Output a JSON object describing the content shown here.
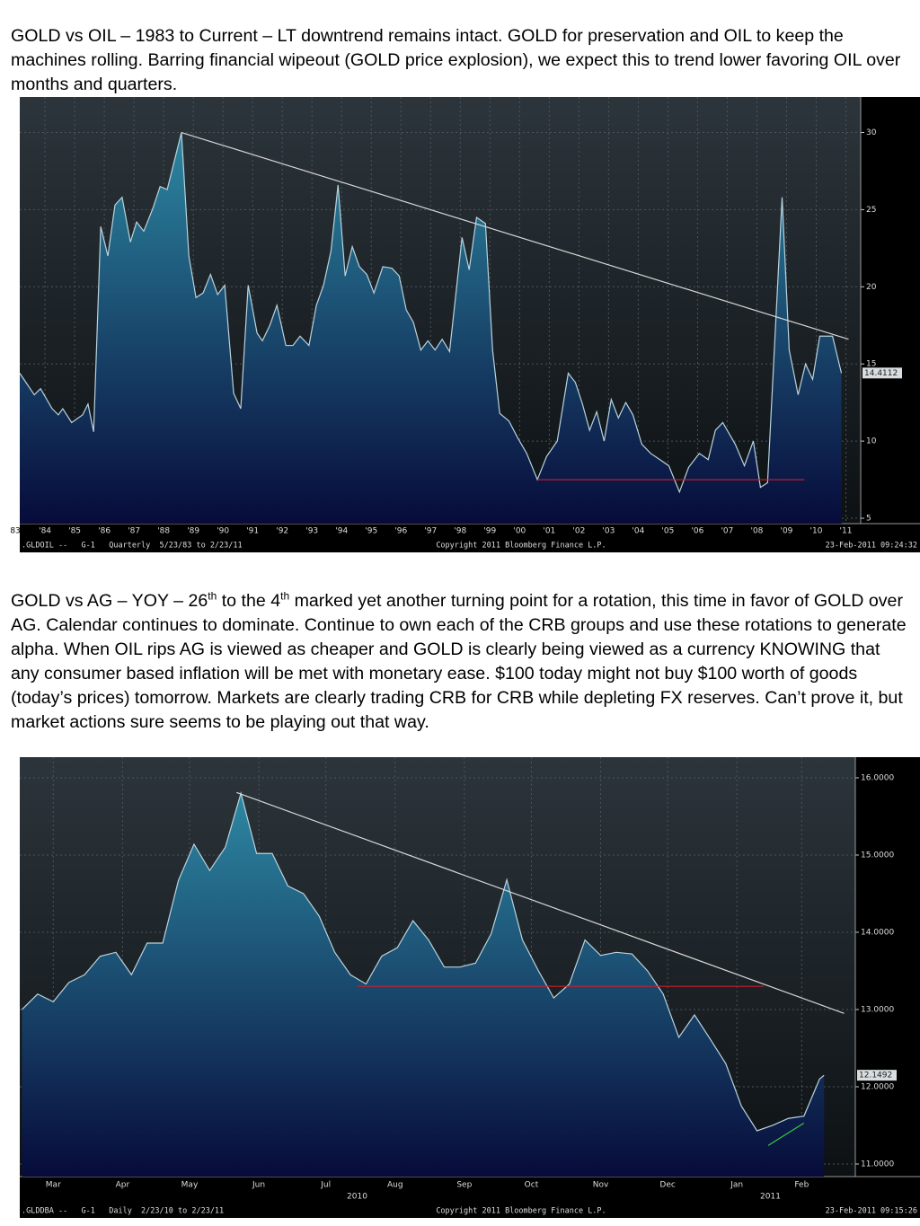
{
  "paragraphs": [
    {
      "parts": [
        "GOLD vs OIL – 1983 to Current – LT downtrend remains intact. GOLD for preservation and OIL to keep the machines rolling. Barring financial wipeout (GOLD price explosion), we expect this to trend lower favoring OIL over months and quarters."
      ]
    },
    {
      "parts": [
        "GOLD vs AG – YOY – 26",
        "th",
        " to the 4",
        "th",
        " marked yet another turning point for a rotation, this time in favor of GOLD over AG. Calendar continues to dominate. Continue to own each of the CRB groups and use these rotations to generate alpha. When OIL rips AG is viewed as cheaper and GOLD is clearly being viewed as a currency KNOWING that any consumer based inflation will be met with monetary ease. $100 today might not buy $100 worth of goods (today’s prices) tomorrow. Markets are clearly trading CRB for CRB while depleting FX reserves. Can’t prove it, but market actions sure seems to be playing out that way."
      ]
    }
  ],
  "chart_data": [
    {
      "type": "area",
      "color": "#2d88a2",
      "line_color": "#b9d3dd",
      "grid": true,
      "x": [
        1983.15,
        1983.64,
        1983.85,
        1984.24,
        1984.45,
        1984.6,
        1984.9,
        1985.27,
        1985.45,
        1985.64,
        1985.88,
        1986.12,
        1986.36,
        1986.6,
        1986.88,
        1987.09,
        1987.33,
        1987.64,
        1987.88,
        1988.12,
        1988.6,
        1988.85,
        1989.09,
        1989.33,
        1989.58,
        1989.82,
        1990.06,
        1990.36,
        1990.6,
        1990.85,
        1991.15,
        1991.33,
        1991.58,
        1991.82,
        1992.12,
        1992.36,
        1992.6,
        1992.9,
        1993.15,
        1993.39,
        1993.64,
        1993.88,
        1994.12,
        1994.36,
        1994.6,
        1994.85,
        1995.09,
        1995.39,
        1995.7,
        1995.94,
        1996.18,
        1996.42,
        1996.67,
        1996.91,
        1997.15,
        1997.39,
        1997.64,
        1998.06,
        1998.3,
        1998.55,
        1998.85,
        1999.09,
        1999.33,
        1999.64,
        1999.94,
        2000.24,
        2000.6,
        2000.91,
        2001.27,
        2001.64,
        2001.88,
        2002.12,
        2002.36,
        2002.6,
        2002.85,
        2003.09,
        2003.33,
        2003.58,
        2003.82,
        2004.12,
        2004.42,
        2004.73,
        2005.03,
        2005.39,
        2005.7,
        2006.06,
        2006.36,
        2006.6,
        2006.85,
        2007.27,
        2007.58,
        2007.88,
        2008.12,
        2008.36,
        2008.85,
        2009.09,
        2009.39,
        2009.64,
        2009.88,
        2010.12,
        2010.55,
        2010.85
      ],
      "values": [
        14.4,
        13.0,
        13.4,
        12.1,
        11.7,
        12.1,
        11.2,
        11.7,
        12.4,
        10.6,
        23.9,
        22.0,
        25.3,
        25.8,
        22.9,
        24.2,
        23.6,
        25.1,
        26.5,
        26.3,
        30.0,
        22.0,
        19.3,
        19.6,
        20.8,
        19.5,
        20.1,
        13.1,
        12.1,
        20.1,
        17.0,
        16.5,
        17.5,
        18.8,
        16.2,
        16.2,
        16.8,
        16.2,
        18.8,
        20.1,
        22.3,
        26.6,
        20.7,
        22.6,
        21.3,
        20.8,
        19.6,
        21.3,
        21.2,
        20.7,
        18.5,
        17.7,
        15.9,
        16.5,
        15.9,
        16.6,
        15.8,
        23.2,
        21.1,
        24.5,
        24.1,
        15.9,
        11.8,
        11.3,
        10.2,
        9.2,
        7.5,
        9.0,
        10.0,
        14.4,
        13.8,
        12.4,
        10.7,
        11.9,
        10.0,
        12.7,
        11.5,
        12.5,
        11.7,
        9.8,
        9.2,
        8.8,
        8.4,
        6.7,
        8.3,
        9.2,
        8.8,
        10.7,
        11.2,
        9.8,
        8.4,
        10.0,
        7.0,
        7.3,
        25.8,
        15.9,
        13.0,
        15.0,
        14.0,
        16.8,
        16.8,
        14.4
      ],
      "last_value": 14.4112,
      "trendlines": [
        {
          "color": "#d6d6d6",
          "x": [
            1988.6,
            2011.09
          ],
          "values": [
            30.0,
            16.6
          ]
        },
        {
          "color": "#c8202c",
          "x": [
            2000.6,
            2009.6
          ],
          "values": [
            7.5,
            7.5
          ]
        }
      ],
      "xlim": [
        1983.15,
        2011.5
      ],
      "ylim": [
        4.65,
        32.3
      ],
      "yticks": [
        30,
        25,
        20,
        15,
        10,
        5
      ],
      "xticks": [
        {
          "value": 1983,
          "label": "83"
        },
        {
          "value": 1984,
          "label": "'84"
        },
        {
          "value": 1985,
          "label": "'85"
        },
        {
          "value": 1986,
          "label": "'86"
        },
        {
          "value": 1987,
          "label": "'87"
        },
        {
          "value": 1988,
          "label": "'88"
        },
        {
          "value": 1989,
          "label": "'89"
        },
        {
          "value": 1990,
          "label": "'90"
        },
        {
          "value": 1991,
          "label": "'91"
        },
        {
          "value": 1992,
          "label": "'92"
        },
        {
          "value": 1993,
          "label": "'93"
        },
        {
          "value": 1994,
          "label": "'94"
        },
        {
          "value": 1995,
          "label": "'95"
        },
        {
          "value": 1996,
          "label": "'96"
        },
        {
          "value": 1997,
          "label": "'97"
        },
        {
          "value": 1998,
          "label": "'98"
        },
        {
          "value": 1999,
          "label": "'99"
        },
        {
          "value": 2000,
          "label": "'00"
        },
        {
          "value": 2001,
          "label": "'01"
        },
        {
          "value": 2002,
          "label": "'02"
        },
        {
          "value": 2003,
          "label": "'03"
        },
        {
          "value": 2004,
          "label": "'04"
        },
        {
          "value": 2005,
          "label": "'05"
        },
        {
          "value": 2006,
          "label": "'06"
        },
        {
          "value": 2007,
          "label": "'07"
        },
        {
          "value": 2008,
          "label": "'08"
        },
        {
          "value": 2009,
          "label": "'09"
        },
        {
          "value": 2010,
          "label": "'10"
        },
        {
          "value": 2011,
          "label": "'11"
        }
      ],
      "footer": {
        "left": ".GLDOIL --   G-1   Quarterly  5/23/83 to 2/23/11",
        "center": "Copyright 2011 Bloomberg Finance L.P.",
        "right": "23-Feb-2011 09:24:32"
      }
    },
    {
      "type": "area",
      "color": "#2d88a2",
      "line_color": "#b9d3dd",
      "grid": true,
      "x": [
        "2010-03-01",
        "2010-03-08",
        "2010-03-15",
        "2010-03-22",
        "2010-03-29",
        "2010-04-05",
        "2010-04-12",
        "2010-04-19",
        "2010-04-26",
        "2010-05-03",
        "2010-05-10",
        "2010-05-17",
        "2010-05-24",
        "2010-05-31",
        "2010-06-07",
        "2010-06-14",
        "2010-06-21",
        "2010-06-28",
        "2010-07-05",
        "2010-07-12",
        "2010-07-19",
        "2010-07-26",
        "2010-08-02",
        "2010-08-09",
        "2010-08-16",
        "2010-08-23",
        "2010-08-30",
        "2010-09-06",
        "2010-09-13",
        "2010-09-20",
        "2010-09-27",
        "2010-10-04",
        "2010-10-11",
        "2010-10-18",
        "2010-10-25",
        "2010-11-01",
        "2010-11-08",
        "2010-11-15",
        "2010-11-22",
        "2010-11-29",
        "2010-12-06",
        "2010-12-13",
        "2010-12-20",
        "2010-12-27",
        "2011-01-03",
        "2011-01-10",
        "2011-01-17",
        "2011-01-24",
        "2011-01-31",
        "2011-02-07",
        "2011-02-14",
        "2011-02-21",
        "2011-02-23"
      ],
      "values": [
        13.0,
        13.2,
        13.1,
        13.35,
        13.45,
        13.69,
        13.74,
        13.45,
        13.86,
        13.86,
        14.67,
        15.14,
        14.8,
        15.1,
        15.8,
        15.02,
        15.02,
        14.6,
        14.5,
        14.21,
        13.74,
        13.45,
        13.33,
        13.69,
        13.8,
        14.15,
        13.9,
        13.55,
        13.55,
        13.6,
        13.98,
        14.68,
        13.9,
        13.51,
        13.15,
        13.33,
        13.9,
        13.7,
        13.74,
        13.72,
        13.5,
        13.2,
        12.64,
        12.93,
        12.62,
        12.3,
        11.75,
        11.43,
        11.5,
        11.59,
        11.62,
        12.1,
        12.1492
      ],
      "last_value": 12.1492,
      "trendlines": [
        {
          "color": "#d6d6d6",
          "x": [
            "2010-06-05",
            "2011-03-04"
          ],
          "values": [
            15.81,
            12.95
          ]
        },
        {
          "color": "#c8202c",
          "x": [
            "2010-07-29",
            "2011-01-27"
          ],
          "values": [
            13.3,
            13.3
          ]
        },
        {
          "color": "#3cc83c",
          "x": [
            "2011-01-29",
            "2011-02-14"
          ],
          "values": [
            11.24,
            11.53
          ]
        }
      ],
      "xlim": [
        "2010-02-28",
        "2011-03-09"
      ],
      "ylim": [
        10.837,
        16.267
      ],
      "yticks": [
        {
          "value": 16,
          "label": "16.0000"
        },
        {
          "value": 15,
          "label": "15.0000"
        },
        {
          "value": 14,
          "label": "14.0000"
        },
        {
          "value": 13,
          "label": "13.0000"
        },
        {
          "value": 12,
          "label": "12.0000"
        },
        {
          "value": 11,
          "label": "11.0000"
        }
      ],
      "xticks": [
        {
          "value": "2010-03-15",
          "label": "Mar"
        },
        {
          "value": "2010-04-15",
          "label": "Apr"
        },
        {
          "value": "2010-05-15",
          "label": "May"
        },
        {
          "value": "2010-06-15",
          "label": "Jun"
        },
        {
          "value": "2010-07-15",
          "label": "Jul"
        },
        {
          "value": "2010-08-15",
          "label": "Aug"
        },
        {
          "value": "2010-09-15",
          "label": "Sep"
        },
        {
          "value": "2010-10-15",
          "label": "Oct"
        },
        {
          "value": "2010-11-15",
          "label": "Nov"
        },
        {
          "value": "2010-12-15",
          "label": "Dec"
        },
        {
          "value": "2011-01-15",
          "label": "Jan"
        },
        {
          "value": "2011-02-13",
          "label": "Feb"
        }
      ],
      "year_ticks": [
        {
          "value": "2010-07-29",
          "label": "2010"
        },
        {
          "value": "2011-01-30",
          "label": "2011"
        }
      ],
      "footer": {
        "left": ".GLDDBA --   G-1   Daily  2/23/10 to 2/23/11",
        "center": "Copyright 2011 Bloomberg Finance L.P.",
        "right": "23-Feb-2011 09:15:26"
      }
    }
  ]
}
